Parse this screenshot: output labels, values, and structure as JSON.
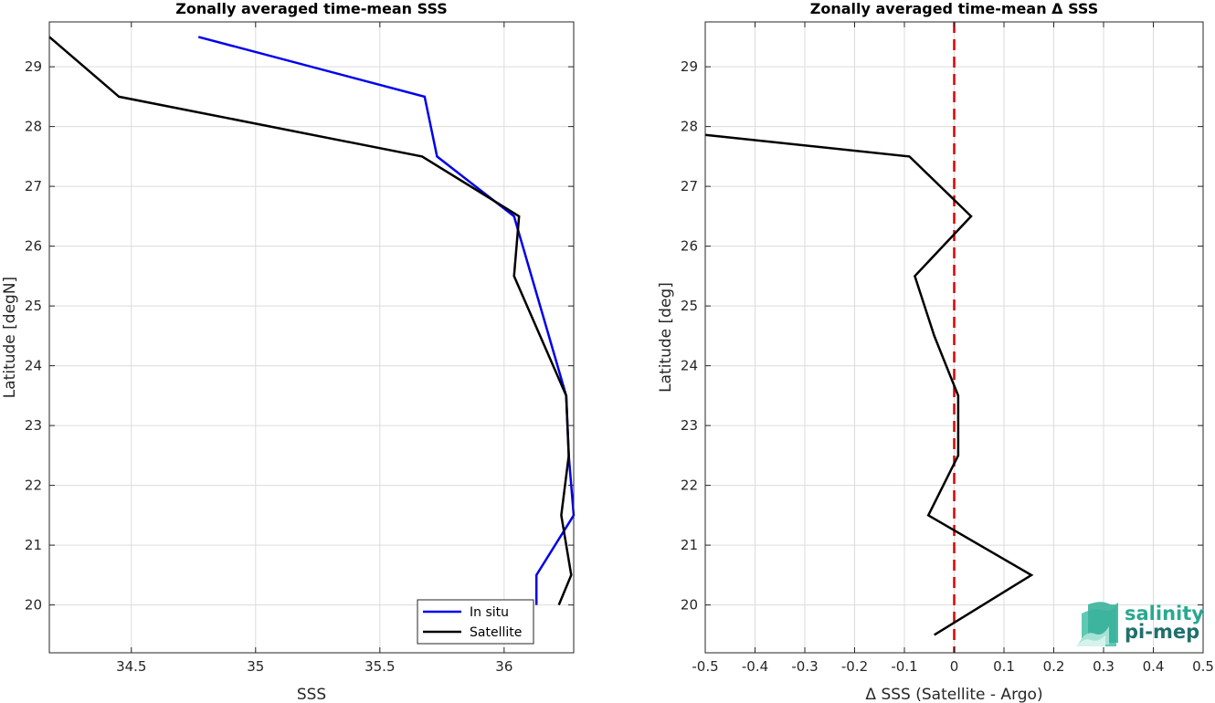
{
  "chart_data": [
    {
      "type": "line",
      "title": "Zonally averaged time-mean SSS",
      "xlabel": "SSS",
      "ylabel": "Latitude [degN]",
      "xlim": [
        34.17,
        36.28
      ],
      "ylim": [
        19.2,
        29.75
      ],
      "xticks": [
        34.5,
        35,
        35.5,
        36
      ],
      "xtick_labels": [
        "34.5",
        "35",
        "35.5",
        "36"
      ],
      "yticks": [
        20,
        21,
        22,
        23,
        24,
        25,
        26,
        27,
        28,
        29
      ],
      "ytick_labels": [
        "20",
        "21",
        "22",
        "23",
        "24",
        "25",
        "26",
        "27",
        "28",
        "29"
      ],
      "grid": true,
      "legend": "bottom-right",
      "series": [
        {
          "name": "In situ",
          "color": "#0000ee",
          "x": [
            34.77,
            35.68,
            35.73,
            36.04,
            36.18,
            36.25,
            36.26,
            36.28,
            36.13,
            36.13
          ],
          "y": [
            29.5,
            28.5,
            27.5,
            26.5,
            24.5,
            23.5,
            22.5,
            21.5,
            20.5,
            20.0
          ]
        },
        {
          "name": "Satellite",
          "color": "#000000",
          "x": [
            34.17,
            34.45,
            35.67,
            36.06,
            36.04,
            36.25,
            36.26,
            36.23,
            36.27,
            36.22
          ],
          "y": [
            29.5,
            28.5,
            27.5,
            26.5,
            25.5,
            23.5,
            22.5,
            21.5,
            20.5,
            20.0
          ]
        }
      ]
    },
    {
      "type": "line",
      "title": "Zonally averaged time-mean Δ SSS",
      "xlabel": "Δ SSS (Satellite - Argo)",
      "ylabel": "Latitude [deg]",
      "xlim": [
        -0.5,
        0.5
      ],
      "ylim": [
        19.2,
        29.75
      ],
      "xticks": [
        -0.5,
        -0.4,
        -0.3,
        -0.2,
        -0.1,
        0,
        0.1,
        0.2,
        0.3,
        0.4,
        0.5
      ],
      "xtick_labels": [
        "-0.5",
        "-0.4",
        "-0.3",
        "-0.2",
        "-0.1",
        "0",
        "0.1",
        "0.2",
        "0.3",
        "0.4",
        "0.5"
      ],
      "yticks": [
        20,
        21,
        22,
        23,
        24,
        25,
        26,
        27,
        28,
        29
      ],
      "ytick_labels": [
        "20",
        "21",
        "22",
        "23",
        "24",
        "25",
        "26",
        "27",
        "28",
        "29"
      ],
      "grid": true,
      "reference_line": {
        "x": 0,
        "color": "#dd0000",
        "style": "dashed"
      },
      "series": [
        {
          "color": "#000000",
          "x": [
            -0.5,
            -0.09,
            0.034,
            -0.079,
            -0.04,
            0.008,
            0.008,
            -0.052,
            0.155,
            -0.04
          ],
          "y": [
            27.86,
            27.5,
            26.5,
            25.5,
            24.5,
            23.5,
            22.5,
            21.5,
            20.5,
            19.5
          ]
        }
      ]
    }
  ],
  "logo": {
    "line1": "salinity",
    "line2": "pi-mep"
  }
}
